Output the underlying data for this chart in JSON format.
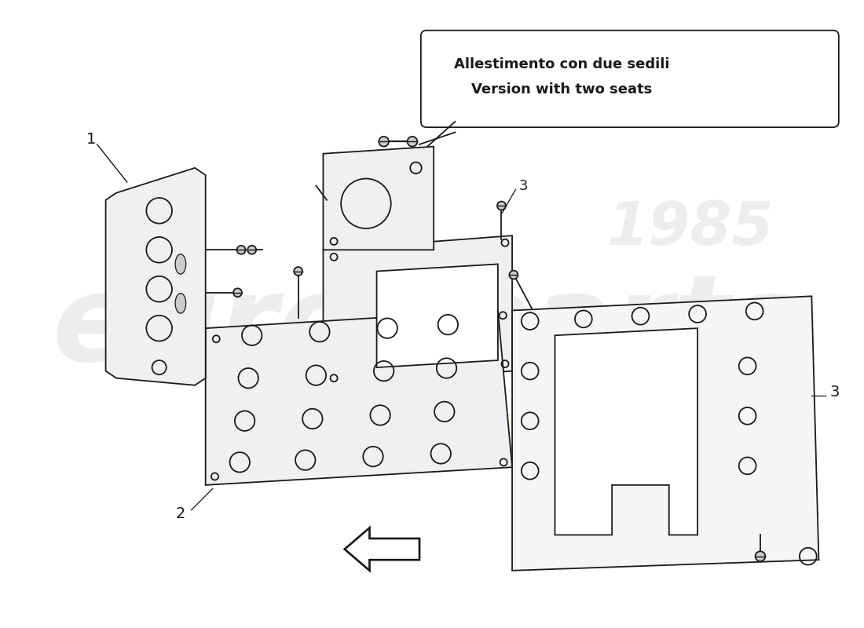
{
  "title_line1": "Allestimento con due sedili",
  "title_line2": "Version with two seats",
  "bg_color": "#ffffff",
  "lc": "#1a1a1a",
  "lw": 1.3,
  "fill_plate": "#f0f0f0",
  "fill_white": "#ffffff"
}
